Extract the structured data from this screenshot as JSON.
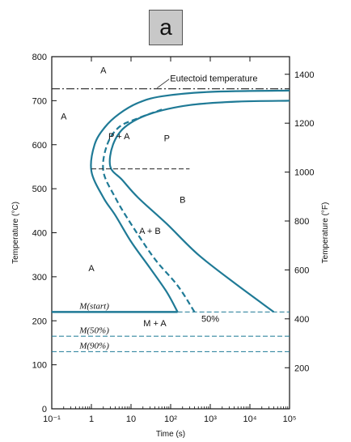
{
  "badge": {
    "label": "a"
  },
  "chart_data": {
    "type": "line",
    "xlabel": "Time (s)",
    "ylabel_left": "Temperature (°C)",
    "ylabel_right": "Temperature (°F)",
    "x_scale": "log",
    "xlim": [
      0.1,
      100000
    ],
    "ylim_left": [
      0,
      800
    ],
    "ylim_right_approx": [
      32,
      1472
    ],
    "x_tick_labels": [
      "10⁻¹",
      "1",
      "10",
      "10²",
      "10³",
      "10⁴",
      "10⁵"
    ],
    "y_left_ticks": [
      "0",
      "100",
      "200",
      "300",
      "400",
      "500",
      "600",
      "700",
      "800"
    ],
    "y_right_ticks": [
      "200",
      "400",
      "600",
      "800",
      "1000",
      "1200",
      "1400"
    ],
    "grid": false,
    "eutectoid_temperature": 727,
    "series": [
      {
        "name": "",
        "style": "solid",
        "points": [
          [
            150,
            220
          ],
          [
            80,
            265
          ],
          [
            30,
            320
          ],
          [
            10,
            380
          ],
          [
            4,
            440
          ],
          [
            2,
            480
          ],
          [
            1,
            540
          ],
          [
            1.2,
            600
          ],
          [
            2.2,
            640
          ],
          [
            5,
            670
          ],
          [
            15,
            695
          ],
          [
            60,
            710
          ],
          [
            1000,
            720
          ],
          [
            100000,
            723
          ]
        ]
      },
      {
        "name": "",
        "style": "dashed",
        "points": [
          [
            400,
            220
          ],
          [
            150,
            280
          ],
          [
            40,
            340
          ],
          [
            10,
            420
          ],
          [
            4,
            480
          ],
          [
            2,
            540
          ],
          [
            2.5,
            600
          ],
          [
            5,
            640
          ],
          [
            15,
            660
          ],
          [
            60,
            680
          ]
        ]
      },
      {
        "name": "",
        "style": "solid",
        "points": [
          [
            40000,
            220
          ],
          [
            5000,
            280
          ],
          [
            500,
            350
          ],
          [
            80,
            420
          ],
          [
            15,
            480
          ],
          [
            6,
            520
          ],
          [
            3,
            550
          ],
          [
            3.5,
            600
          ],
          [
            7,
            640
          ],
          [
            30,
            670
          ],
          [
            300,
            690
          ],
          [
            5000,
            698
          ],
          [
            100000,
            700
          ]
        ]
      },
      {
        "name": "",
        "style": "dashed",
        "points": [
          [
            1,
            545
          ],
          [
            300,
            545
          ]
        ]
      }
    ],
    "horizontal_lines": [
      {
        "label": "Eutectoid temperature",
        "y": 727,
        "style": "dash-dot"
      },
      {
        "label": "M(start)",
        "y": 220,
        "style": "solid",
        "x_to": 150
      },
      {
        "label": "",
        "y": 220,
        "style": "dashed",
        "x_from": 150
      },
      {
        "label": "M(50%)",
        "y": 165,
        "style": "dashed"
      },
      {
        "label": "M(90%)",
        "y": 130,
        "style": "dashed"
      }
    ],
    "annotations": [
      {
        "text": "A",
        "x": 2,
        "y": 770
      },
      {
        "text": "A",
        "x": 0.2,
        "y": 665
      },
      {
        "text": "P",
        "x": 80,
        "y": 615
      },
      {
        "text": "P + A",
        "x": 5,
        "y": 620
      },
      {
        "text": "B",
        "x": 200,
        "y": 475
      },
      {
        "text": "A + B",
        "x": 30,
        "y": 405
      },
      {
        "text": "A",
        "x": 1,
        "y": 320
      },
      {
        "text": "M + A",
        "x": 40,
        "y": 195
      },
      {
        "text": "50%",
        "x": 1000,
        "y": 205
      }
    ]
  }
}
